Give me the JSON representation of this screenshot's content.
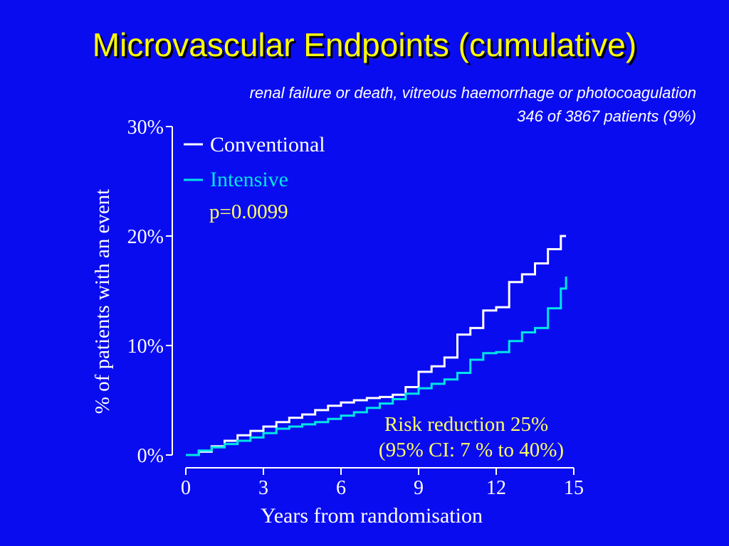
{
  "slide": {
    "title": "Microvascular Endpoints (cumulative)",
    "subtitle_line1": "renal failure or death, vitreous haemorrhage or photocoagulation",
    "subtitle_line2": "346 of 3867 patients (9%)"
  },
  "colors": {
    "background": "#0a0cf0",
    "title": "#ffff00",
    "conventional": "#ffffff",
    "intensive": "#00e5e5",
    "annotation": "#ffff66"
  },
  "chart_data": {
    "type": "line",
    "xlabel": "Years from randomisation",
    "ylabel": "% of patients with an event",
    "xlim": [
      0,
      15
    ],
    "ylim": [
      0,
      30
    ],
    "x_ticks": [
      "0",
      "3",
      "6",
      "9",
      "12",
      "15"
    ],
    "y_ticks": [
      "0%",
      "10%",
      "20%",
      "30%"
    ],
    "legend_position": "top-left",
    "series": [
      {
        "name": "Conventional",
        "color": "#ffffff",
        "x": [
          0,
          0.5,
          1,
          1.5,
          2,
          2.5,
          3,
          3.5,
          4,
          4.5,
          5,
          5.5,
          6,
          6.5,
          7,
          7.5,
          8,
          8.5,
          9,
          9.5,
          10,
          10.5,
          11,
          11.5,
          12,
          12.5,
          13,
          13.5,
          14,
          14.5,
          14.7
        ],
        "y": [
          0,
          0.3,
          0.8,
          1.3,
          1.8,
          2.2,
          2.6,
          3.0,
          3.4,
          3.7,
          4.1,
          4.5,
          4.8,
          5.0,
          5.2,
          5.3,
          5.5,
          6.2,
          7.6,
          8.1,
          8.9,
          11.0,
          11.6,
          13.2,
          13.5,
          15.8,
          16.5,
          17.5,
          18.8,
          20.0,
          20.0
        ]
      },
      {
        "name": "Intensive",
        "color": "#00e5e5",
        "x": [
          0,
          0.5,
          1,
          1.5,
          2,
          2.5,
          3,
          3.5,
          4,
          4.5,
          5,
          5.5,
          6,
          6.5,
          7,
          7.5,
          8,
          8.5,
          9,
          9.5,
          10,
          10.5,
          11,
          11.5,
          12,
          12.5,
          13,
          13.5,
          14,
          14.5,
          14.7
        ],
        "y": [
          0,
          0.4,
          0.7,
          1.0,
          1.3,
          1.6,
          2.0,
          2.4,
          2.6,
          2.8,
          3.0,
          3.3,
          3.6,
          3.9,
          4.3,
          4.7,
          5.1,
          5.6,
          6.1,
          6.5,
          6.9,
          7.5,
          8.7,
          9.3,
          9.4,
          10.4,
          11.2,
          11.6,
          13.4,
          15.2,
          16.3
        ]
      }
    ],
    "annotations": {
      "p_value": "p=0.0099",
      "risk_reduction": "Risk reduction 25%",
      "confidence_interval": "(95% CI: 7 % to 40%)"
    }
  }
}
